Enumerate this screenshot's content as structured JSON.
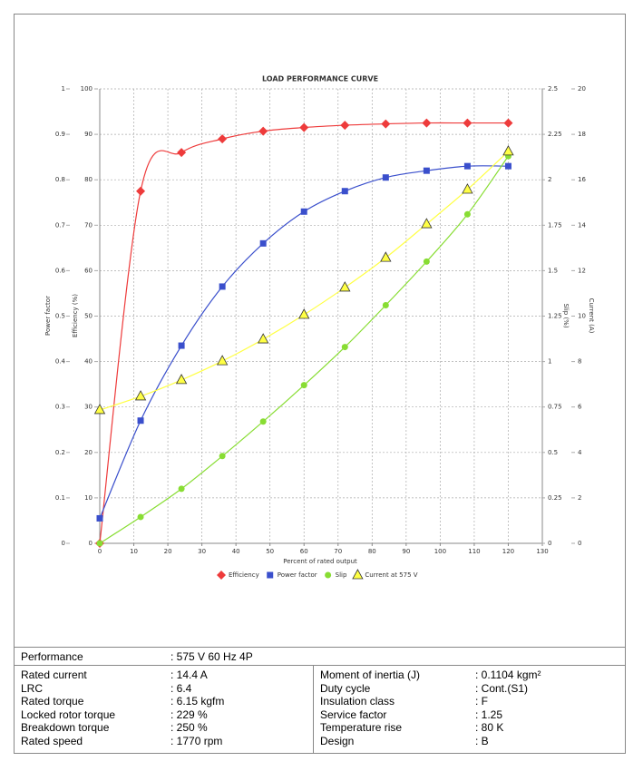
{
  "chart_data": {
    "type": "line",
    "title": "LOAD PERFORMANCE CURVE",
    "xlabel": "Percent of rated output",
    "ylabel": "Power factor",
    "y2label": "Efficiency (%)",
    "y3label": "Slip (%)",
    "y4label": "Current (A)",
    "x": [
      0,
      12,
      24,
      36,
      48,
      60,
      72,
      84,
      96,
      108,
      120
    ],
    "xlim": [
      0,
      130
    ],
    "xticks": [
      0,
      10,
      20,
      30,
      40,
      50,
      60,
      70,
      80,
      90,
      100,
      110,
      120,
      130
    ],
    "ylim": [
      0,
      1
    ],
    "yticks": [
      0,
      0.1,
      0.2,
      0.3,
      0.4,
      0.5,
      0.6,
      0.7,
      0.8,
      0.9,
      1
    ],
    "y2lim": [
      0,
      100
    ],
    "y2ticks": [
      0,
      10,
      20,
      30,
      40,
      50,
      60,
      70,
      80,
      90,
      100
    ],
    "y3lim": [
      0,
      2.5
    ],
    "y3ticks": [
      0,
      0.25,
      0.5,
      0.75,
      1,
      1.25,
      1.5,
      1.75,
      2,
      2.25,
      2.5
    ],
    "y4lim": [
      0,
      20
    ],
    "y4ticks": [
      0,
      2,
      4,
      6,
      8,
      10,
      12,
      14,
      16,
      18,
      20
    ],
    "grid": true,
    "series": [
      {
        "name": "Efficiency",
        "color": "#ee3b3b",
        "marker": "diamond",
        "axis": "y2",
        "values": [
          0,
          77.5,
          86,
          89,
          90.7,
          91.5,
          92,
          92.3,
          92.5,
          92.5,
          92.5
        ]
      },
      {
        "name": "Power factor",
        "color": "#3a4fcc",
        "marker": "square",
        "axis": "y",
        "values": [
          0.055,
          0.27,
          0.435,
          0.565,
          0.66,
          0.73,
          0.775,
          0.805,
          0.82,
          0.83,
          0.83
        ]
      },
      {
        "name": "Slip",
        "color": "#88dd33",
        "marker": "circle",
        "axis": "y3",
        "values": [
          0,
          0.145,
          0.3,
          0.48,
          0.67,
          0.87,
          1.08,
          1.31,
          1.55,
          1.81,
          2.13
        ]
      },
      {
        "name": "Current at 575 V",
        "color": "#ffff44",
        "marker": "triangle",
        "axis": "y4",
        "values": [
          5.87,
          6.47,
          7.19,
          8.02,
          8.98,
          10.06,
          11.26,
          12.57,
          14.05,
          15.57,
          17.25
        ]
      }
    ]
  },
  "table": {
    "performance": {
      "label": "Performance",
      "value": ": 575 V 60 Hz 4P"
    },
    "left": [
      [
        "Rated current",
        ": 14.4 A"
      ],
      [
        "LRC",
        ": 6.4"
      ],
      [
        "Rated torque",
        ": 6.15 kgfm"
      ],
      [
        "Locked rotor torque",
        ": 229 %"
      ],
      [
        "Breakdown torque",
        ": 250 %"
      ],
      [
        "Rated speed",
        ": 1770 rpm"
      ]
    ],
    "right": [
      [
        "Moment of inertia (J)",
        ": 0.1104 kgm²"
      ],
      [
        "Duty cycle",
        ": Cont.(S1)"
      ],
      [
        "Insulation class",
        ": F"
      ],
      [
        "Service factor",
        ": 1.25"
      ],
      [
        "Temperature rise",
        ": 80 K"
      ],
      [
        "Design",
        ": B"
      ]
    ]
  }
}
